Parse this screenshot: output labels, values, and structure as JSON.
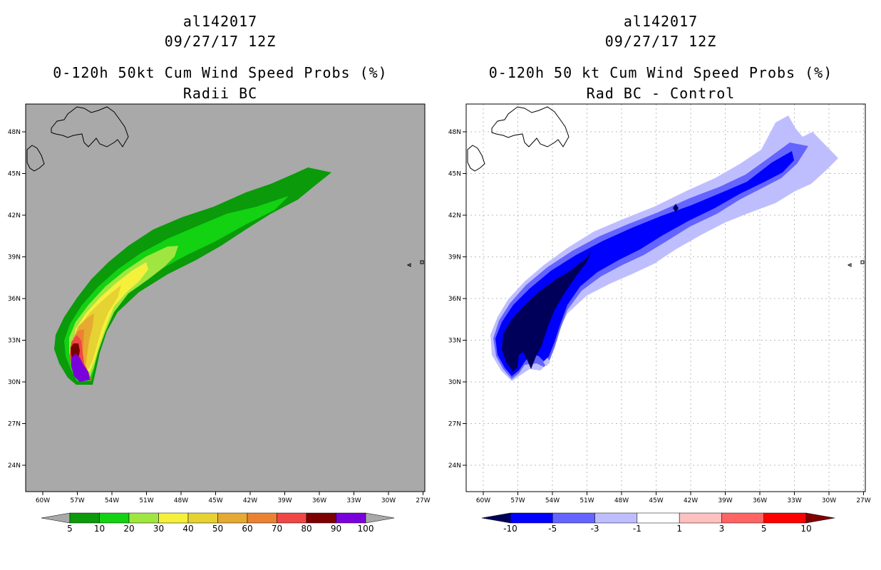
{
  "colors": {
    "land_outline": "#000000",
    "left_background": "#a9a9a9",
    "right_background": "#ffffff",
    "grid": "#bbbbbb"
  },
  "axes": {
    "lat_labels": [
      "48N",
      "45N",
      "42N",
      "39N",
      "36N",
      "33N",
      "30N",
      "27N",
      "24N"
    ],
    "lon_labels": [
      "60W",
      "57W",
      "54W",
      "51W",
      "48W",
      "45W",
      "42W",
      "39W",
      "36W",
      "33W",
      "30W",
      "27W"
    ]
  },
  "left_panel": {
    "storm_id": "al142017",
    "datetime": "09/27/17 12Z",
    "title": "0-120h 50kt Cum Wind Speed Probs (%)",
    "subtitle": "Radii BC",
    "colorbar": {
      "labels": [
        "5",
        "10",
        "20",
        "30",
        "40",
        "50",
        "60",
        "70",
        "80",
        "90",
        "100"
      ],
      "colors": [
        "#a9a9a9",
        "#0a9a0a",
        "#12d212",
        "#a0e640",
        "#f5f03c",
        "#e6d232",
        "#e6aa32",
        "#eb8232",
        "#f04646",
        "#7d0000",
        "#7a00dc",
        "#a9a9a9"
      ]
    }
  },
  "right_panel": {
    "storm_id": "al142017",
    "datetime": "09/27/17 12Z",
    "title": "0-120h 50 kt Cum Wind Speed Probs (%)",
    "subtitle": "Rad BC - Control",
    "colorbar": {
      "labels": [
        "-10",
        "-5",
        "-3",
        "-1",
        "1",
        "3",
        "5",
        "10"
      ],
      "colors": [
        "#00005a",
        "#0000ff",
        "#6464ff",
        "#bebeff",
        "#ffffff",
        "#ffc0c0",
        "#ff6464",
        "#ff0000",
        "#800000"
      ]
    }
  }
}
